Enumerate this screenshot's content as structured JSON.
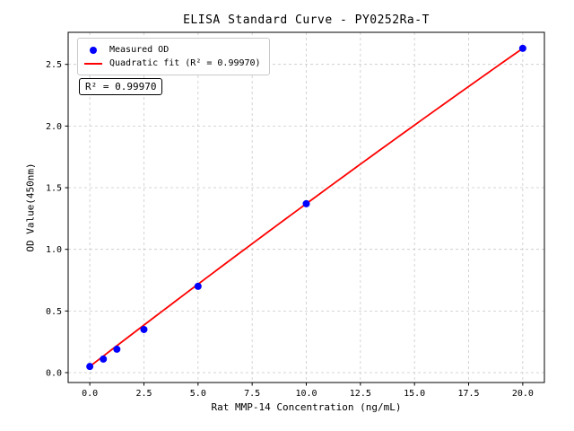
{
  "chart_data": {
    "type": "scatter",
    "title": "ELISA Standard Curve - PY0252Ra-T",
    "xlabel": "Rat MMP-14 Concentration (ng/mL)",
    "ylabel": "OD Value(450nm)",
    "annotation": "R² = 0.99970",
    "xlim": [
      -1,
      21
    ],
    "ylim": [
      -0.08,
      2.76
    ],
    "xticks": [
      0.0,
      2.5,
      5.0,
      7.5,
      10.0,
      12.5,
      15.0,
      17.5,
      20.0
    ],
    "xtick_labels": [
      "0.0",
      "2.5",
      "5.0",
      "7.5",
      "10.0",
      "12.5",
      "15.0",
      "17.5",
      "20.0"
    ],
    "yticks": [
      0.0,
      0.5,
      1.0,
      1.5,
      2.0,
      2.5
    ],
    "ytick_labels": [
      "0.0",
      "0.5",
      "1.0",
      "1.5",
      "2.0",
      "2.5"
    ],
    "grid": true,
    "legend_position": "upper left",
    "series": [
      {
        "name": "Measured OD",
        "type": "scatter",
        "color": "#0000ff",
        "x": [
          0,
          0.625,
          1.25,
          2.5,
          5,
          10,
          20
        ],
        "y": [
          0.05,
          0.11,
          0.19,
          0.35,
          0.7,
          1.37,
          2.63
        ]
      },
      {
        "name": "Quadratic fit (R² = 0.99970)",
        "type": "line",
        "color": "#ff0000",
        "coeffs": [
          0.05,
          0.135,
          -0.0003
        ],
        "x_range": [
          0,
          20
        ],
        "r_squared": 0.9997
      }
    ]
  }
}
